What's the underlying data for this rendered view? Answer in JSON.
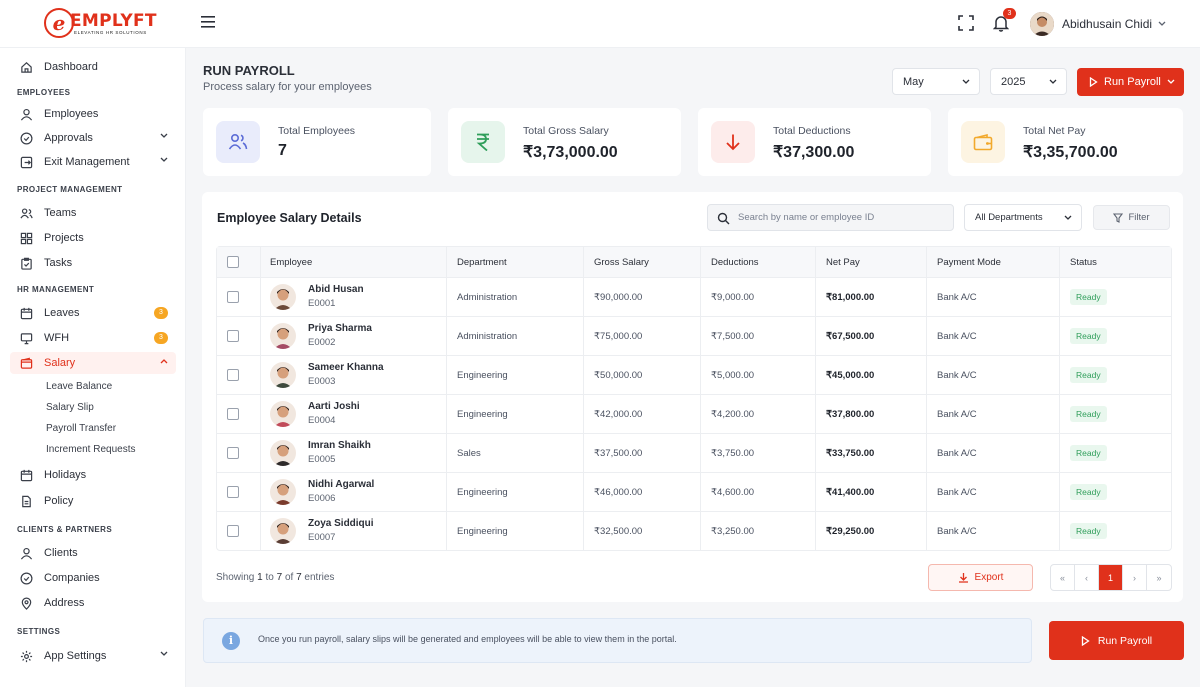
{
  "brand": {
    "name": "EMPLYFT",
    "tagline": "ELEVATING HR SOLUTIONS",
    "mark": "e"
  },
  "topbar": {
    "notifications_count": "3",
    "user_name": "Abidhusain Chidi"
  },
  "sidebar": {
    "dashboard": "Dashboard",
    "sections": {
      "employees": "EMPLOYEES",
      "project": "PROJECT MANAGEMENT",
      "hr": "HR MANAGEMENT",
      "clients": "CLIENTS & PARTNERS",
      "settings": "SETTINGS"
    },
    "items": {
      "employees": "Employees",
      "approvals": "Approvals",
      "exit": "Exit Management",
      "teams": "Teams",
      "projects": "Projects",
      "tasks": "Tasks",
      "leaves": "Leaves",
      "leaves_badge": "3",
      "wfh": "WFH",
      "wfh_badge": "3",
      "salary": "Salary",
      "holidays": "Holidays",
      "policy": "Policy",
      "clients": "Clients",
      "companies": "Companies",
      "address": "Address",
      "app_settings": "App Settings"
    },
    "salary_sub": {
      "leave_balance": "Leave Balance",
      "salary_slip": "Salary Slip",
      "payroll_transfer": "Payroll Transfer",
      "increment_requests": "Increment Requests"
    }
  },
  "header": {
    "title": "RUN PAYROLL",
    "subtitle": "Process salary for your employees",
    "month": "May",
    "year": "2025",
    "run_button": "Run Payroll"
  },
  "stats": {
    "employees": {
      "label": "Total Employees",
      "value": "7",
      "color": "#5b6bd6"
    },
    "gross": {
      "label": "Total Gross Salary",
      "value": "₹3,73,000.00",
      "color": "#2f9e5a"
    },
    "deductions": {
      "label": "Total Deductions",
      "value": "₹37,300.00",
      "color": "#e0311b"
    },
    "net": {
      "label": "Total Net Pay",
      "value": "₹3,35,700.00",
      "color": "#f2a92c"
    }
  },
  "table": {
    "title": "Employee Salary Details",
    "search_placeholder": "Search by name or employee ID",
    "department_filter": "All Departments",
    "filter_label": "Filter",
    "columns": {
      "employee": "Employee",
      "department": "Department",
      "gross": "Gross Salary",
      "deductions": "Deductions",
      "net": "Net Pay",
      "mode": "Payment Mode",
      "status": "Status"
    },
    "rows": [
      {
        "name": "Abid Husan",
        "id": "E0001",
        "department": "Administration",
        "gross": "₹90,000.00",
        "deductions": "₹9,000.00",
        "net": "₹81,000.00",
        "mode": "Bank A/C",
        "status": "Ready",
        "avatar_color": "#6b4a3a"
      },
      {
        "name": "Priya Sharma",
        "id": "E0002",
        "department": "Administration",
        "gross": "₹75,000.00",
        "deductions": "₹7,500.00",
        "net": "₹67,500.00",
        "mode": "Bank A/C",
        "status": "Ready",
        "avatar_color": "#a44a64"
      },
      {
        "name": "Sameer Khanna",
        "id": "E0003",
        "department": "Engineering",
        "gross": "₹50,000.00",
        "deductions": "₹5,000.00",
        "net": "₹45,000.00",
        "mode": "Bank A/C",
        "status": "Ready",
        "avatar_color": "#3e4a3d"
      },
      {
        "name": "Aarti Joshi",
        "id": "E0004",
        "department": "Engineering",
        "gross": "₹42,000.00",
        "deductions": "₹4,200.00",
        "net": "₹37,800.00",
        "mode": "Bank A/C",
        "status": "Ready",
        "avatar_color": "#c14b5a"
      },
      {
        "name": "Imran Shaikh",
        "id": "E0005",
        "department": "Sales",
        "gross": "₹37,500.00",
        "deductions": "₹3,750.00",
        "net": "₹33,750.00",
        "mode": "Bank A/C",
        "status": "Ready",
        "avatar_color": "#2e2a2a"
      },
      {
        "name": "Nidhi Agarwal",
        "id": "E0006",
        "department": "Engineering",
        "gross": "₹46,000.00",
        "deductions": "₹4,600.00",
        "net": "₹41,400.00",
        "mode": "Bank A/C",
        "status": "Ready",
        "avatar_color": "#7a3b2c"
      },
      {
        "name": "Zoya Siddiqui",
        "id": "E0007",
        "department": "Engineering",
        "gross": "₹32,500.00",
        "deductions": "₹3,250.00",
        "net": "₹29,250.00",
        "mode": "Bank A/C",
        "status": "Ready",
        "avatar_color": "#5a3d34"
      }
    ],
    "showing": {
      "prefix": "Showing ",
      "from": "1",
      "to_word": " to ",
      "to": "7",
      "of_word": " of ",
      "total": "7",
      "suffix": " entries"
    },
    "export_label": "Export",
    "pagination": {
      "first": "«",
      "prev": "‹",
      "current": "1",
      "next": "›",
      "last": "»"
    }
  },
  "footer": {
    "info_icon": "i",
    "info_text": "Once you run payroll, salary slips will be generated and employees will be able to view them in the portal.",
    "run_button": "Run Payroll"
  }
}
